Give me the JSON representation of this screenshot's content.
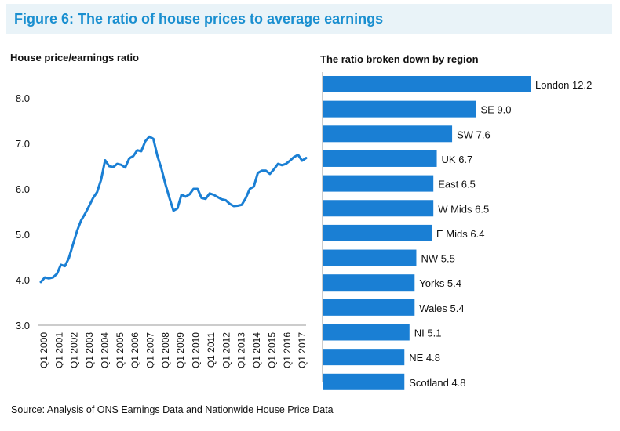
{
  "title": "Figure 6: The ratio of house prices to average earnings",
  "source": "Source: Analysis of ONS Earnings Data and Nationwide House Price Data",
  "chart_data": [
    {
      "type": "line",
      "title": "House price/earnings ratio",
      "xlabel": "",
      "ylabel": "",
      "ylim": [
        3.0,
        8.0
      ],
      "yticks": [
        "8.0",
        "7.0",
        "6.0",
        "5.0",
        "4.0",
        "3.0"
      ],
      "xticks": [
        "Q1 2000",
        "Q1 2001",
        "Q1 2002",
        "Q1 2003",
        "Q1 2004",
        "Q1 2005",
        "Q1 2006",
        "Q1 2007",
        "Q1 2008",
        "Q1 2009",
        "Q1 2010",
        "Q1 2011",
        "Q1 2012",
        "Q1 2013",
        "Q1 2014",
        "Q1 2015",
        "Q1 2016",
        "Q1 2017"
      ],
      "grid": false,
      "color": "#1a7fd4",
      "series": [
        {
          "values": [
            3.95,
            4.05,
            4.03,
            4.05,
            4.13,
            4.33,
            4.3,
            4.48,
            4.78,
            5.07,
            5.3,
            5.45,
            5.62,
            5.8,
            5.93,
            6.2,
            6.63,
            6.5,
            6.48,
            6.55,
            6.53,
            6.47,
            6.67,
            6.72,
            6.85,
            6.83,
            7.05,
            7.15,
            7.1,
            6.73,
            6.45,
            6.1,
            5.8,
            5.52,
            5.57,
            5.87,
            5.83,
            5.88,
            6.0,
            6.0,
            5.8,
            5.78,
            5.9,
            5.87,
            5.82,
            5.77,
            5.75,
            5.67,
            5.62,
            5.63,
            5.65,
            5.8,
            6.0,
            6.05,
            6.35,
            6.4,
            6.4,
            6.33,
            6.43,
            6.55,
            6.52,
            6.55,
            6.62,
            6.7,
            6.75,
            6.62,
            6.68
          ]
        }
      ]
    },
    {
      "type": "bar",
      "orientation": "horizontal",
      "title": "The ratio broken down by region",
      "color": "#1a7fd4",
      "categories": [
        "London",
        "SE",
        "SW",
        "UK",
        "East",
        "W Mids",
        "E Mids",
        "NW",
        "Yorks",
        "Wales",
        "NI",
        "NE",
        "Scotland"
      ],
      "values": [
        12.2,
        9.0,
        7.6,
        6.7,
        6.5,
        6.5,
        6.4,
        5.5,
        5.4,
        5.4,
        5.1,
        4.8,
        4.8
      ],
      "labels": [
        "London 12.2",
        "SE 9.0",
        "SW 7.6",
        "UK 6.7",
        "East 6.5",
        "W Mids 6.5",
        "E Mids 6.4",
        "NW 5.5",
        "Yorks 5.4",
        "Wales 5.4",
        "NI 5.1",
        "NE 4.8",
        "Scotland 4.8"
      ]
    }
  ]
}
